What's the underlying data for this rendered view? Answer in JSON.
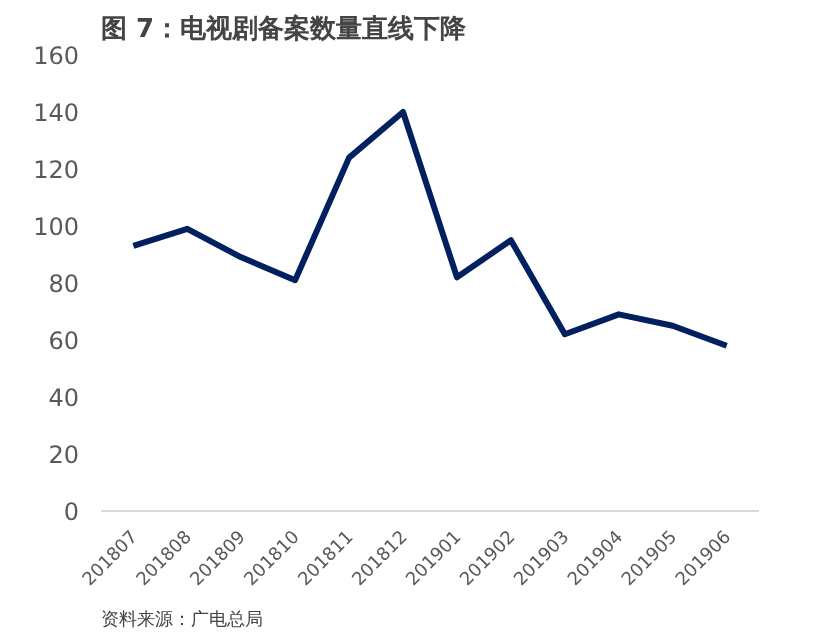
{
  "chart_data": {
    "type": "line",
    "title": "图 7：电视剧备案数量直线下降",
    "categories": [
      "201807",
      "201808",
      "201809",
      "201810",
      "201811",
      "201812",
      "201901",
      "201902",
      "201903",
      "201904",
      "201905",
      "201906"
    ],
    "series": [
      {
        "color": "#002060",
        "values": [
          93,
          99,
          89,
          81,
          124,
          140,
          82,
          95,
          62,
          69,
          65,
          58
        ]
      }
    ],
    "ylim": [
      0,
      160
    ],
    "yticks": [
      0,
      20,
      40,
      60,
      80,
      100,
      120,
      140,
      160
    ],
    "grid": false,
    "annotations": [
      "资料来源：广电总局"
    ]
  }
}
